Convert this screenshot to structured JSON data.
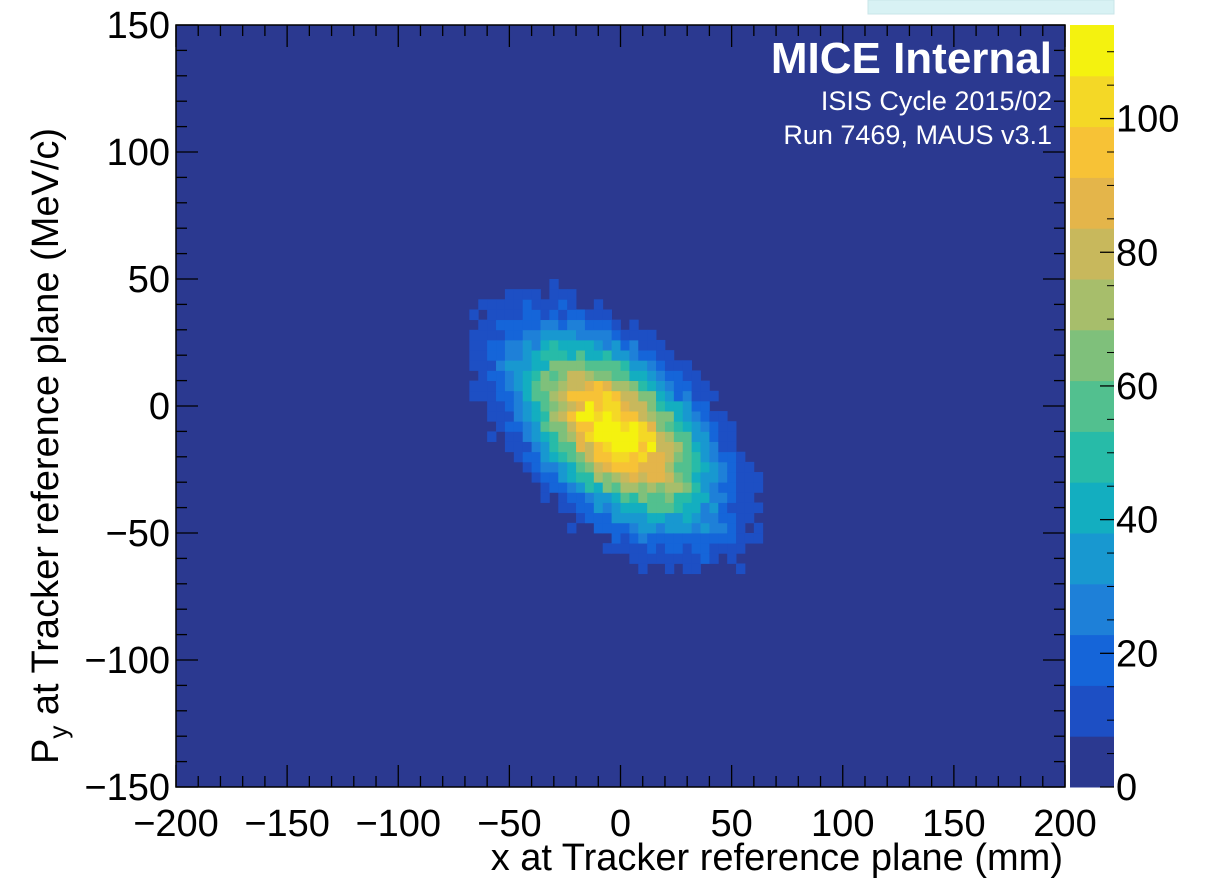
{
  "chart_data": {
    "type": "heatmap",
    "xlabel": "x at Tracker reference plane (mm)",
    "ylabel": "P",
    "ylabel_subscript": "y",
    "ylabel_suffix": " at Tracker reference plane (MeV/c)",
    "xlim": [
      -200,
      200
    ],
    "ylim": [
      -150,
      150
    ],
    "zlim": [
      0,
      114
    ],
    "x_ticks": [
      "−200",
      "−150",
      "−100",
      "−50",
      "0",
      "50",
      "100",
      "150",
      "200"
    ],
    "y_ticks": [
      "−150",
      "−100",
      "−50",
      "0",
      "50",
      "100",
      "150"
    ],
    "z_ticks": [
      "0",
      "20",
      "40",
      "60",
      "80",
      "100"
    ],
    "grid": false,
    "annotations": {
      "title": "MICE Internal",
      "line1": "ISIS Cycle 2015/02",
      "line2": "Run 7469, MAUS v3.1"
    },
    "stats_box_color": "#d8f2f4",
    "colormap": [
      "#2b3990",
      "#1d4fc4",
      "#1565d9",
      "#1e80d8",
      "#1898d0",
      "#13aec0",
      "#27bba8",
      "#52c08f",
      "#7fc07b",
      "#a7be6b",
      "#c8b85c",
      "#e4b54a",
      "#f7c236",
      "#f4d826",
      "#f4f20f"
    ],
    "distribution": {
      "mean_x": -2,
      "mean_y": -10,
      "sigma_x": 28,
      "sigma_y": 24,
      "correlation": -0.55,
      "peak_count": 114
    }
  }
}
